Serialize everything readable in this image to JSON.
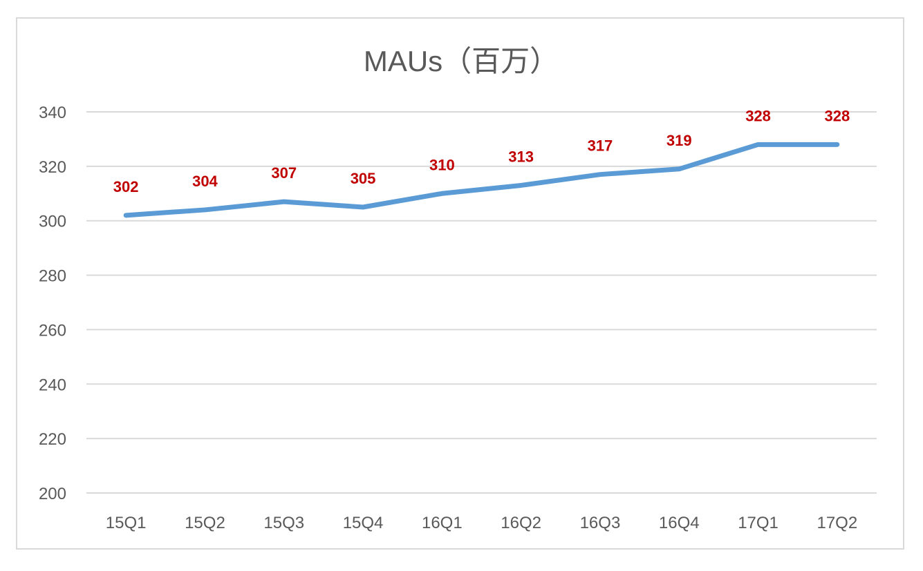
{
  "chart_data": {
    "type": "line",
    "title": "MAUs（百万）",
    "xlabel": "",
    "ylabel": "",
    "categories": [
      "15Q1",
      "15Q2",
      "15Q3",
      "15Q4",
      "16Q1",
      "16Q2",
      "16Q3",
      "16Q4",
      "17Q1",
      "17Q2"
    ],
    "series": [
      {
        "name": "MAUs",
        "values": [
          302,
          304,
          307,
          305,
          310,
          313,
          317,
          319,
          328,
          328
        ]
      }
    ],
    "ylim": [
      200,
      340
    ],
    "yticks": [
      200,
      220,
      240,
      260,
      280,
      300,
      320,
      340
    ],
    "grid": true,
    "legend": "none",
    "data_labels": true,
    "colors": {
      "line": "#5b9bd5",
      "labels": "#c00000",
      "text": "#595959",
      "grid": "#d9d9d9"
    }
  }
}
